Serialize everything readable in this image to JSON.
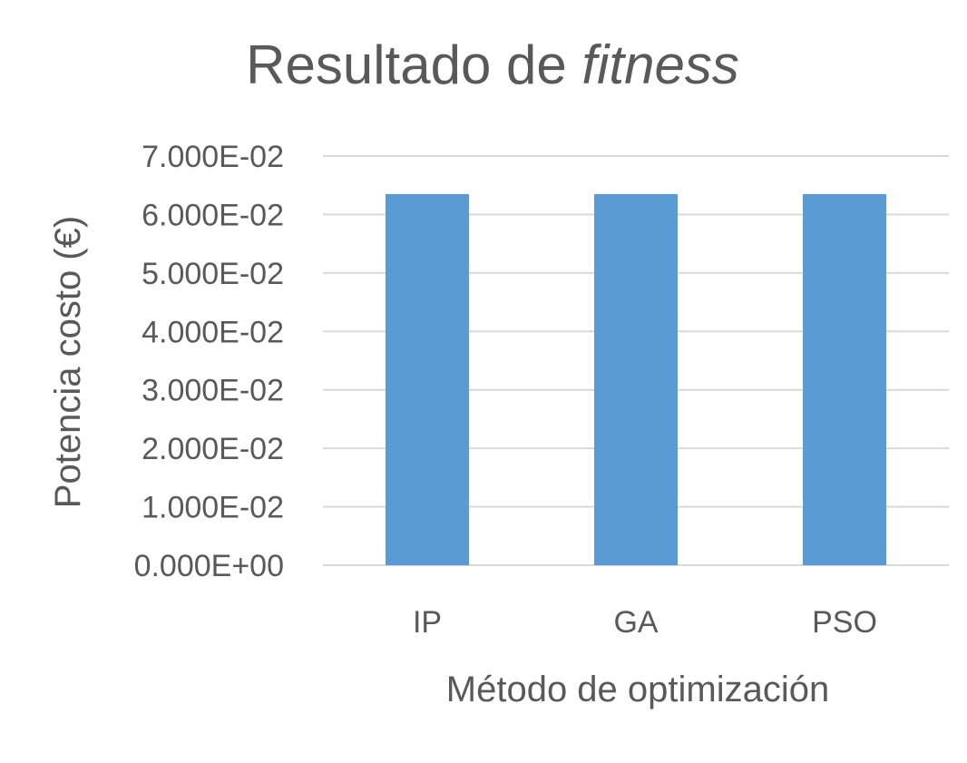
{
  "chart_data": {
    "type": "bar",
    "title": "Resultado de",
    "title_italic": "fitness",
    "xlabel": "Método de optimización",
    "ylabel": "Potencia costo (€)",
    "categories": [
      "IP",
      "GA",
      "PSO"
    ],
    "values": [
      0.0635,
      0.0635,
      0.0635
    ],
    "ylim": [
      0,
      0.07
    ],
    "yticks": [
      0,
      0.01,
      0.02,
      0.03,
      0.04,
      0.05,
      0.06,
      0.07
    ],
    "ytick_labels": [
      "0.000E+00",
      "1.000E-02",
      "2.000E-02",
      "3.000E-02",
      "4.000E-02",
      "5.000E-02",
      "6.000E-02",
      "7.000E-02"
    ],
    "grid": true,
    "legend": "none",
    "bar_color": "#5b9bd5",
    "grid_color": "#d9d9d9",
    "text_color": "#595959"
  }
}
